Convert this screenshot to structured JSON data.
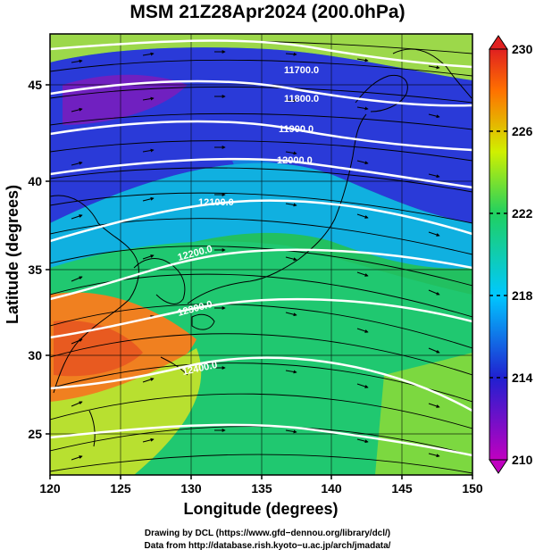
{
  "title": "MSM 21Z28Apr2024 (200.0hPa)",
  "x_axis": {
    "label": "Longitude (degrees)",
    "range": [
      120,
      150
    ],
    "ticks": [
      "120",
      "125",
      "130",
      "135",
      "140",
      "145",
      "150"
    ]
  },
  "y_axis": {
    "label": "Latitude  (degrees)",
    "range": [
      22.4,
      47.6
    ],
    "ticks": [
      "25",
      "30",
      "35",
      "40",
      "45"
    ]
  },
  "colorbar": {
    "min": 210,
    "max": 230,
    "ticks": [
      "210",
      "214",
      "218",
      "222",
      "226",
      "230"
    ],
    "colors": [
      "#c000c0",
      "#2020d0",
      "#00c8ff",
      "#20d060",
      "#d0f000",
      "#ff7000",
      "#e02020"
    ]
  },
  "contours": [
    {
      "label": "11700.0"
    },
    {
      "label": "11800.0"
    },
    {
      "label": "11900.0"
    },
    {
      "label": "12000.0"
    },
    {
      "label": "12100.0"
    },
    {
      "label": "12200.0"
    },
    {
      "label": "12300.0"
    },
    {
      "label": "12400.0"
    }
  ],
  "credits": {
    "line1": "Drawing by DCL (https://www.gfd−dennou.org/library/dcl/)",
    "line2": "Data from http://database.rish.kyoto−u.ac.jp/arch/jmadata/"
  }
}
